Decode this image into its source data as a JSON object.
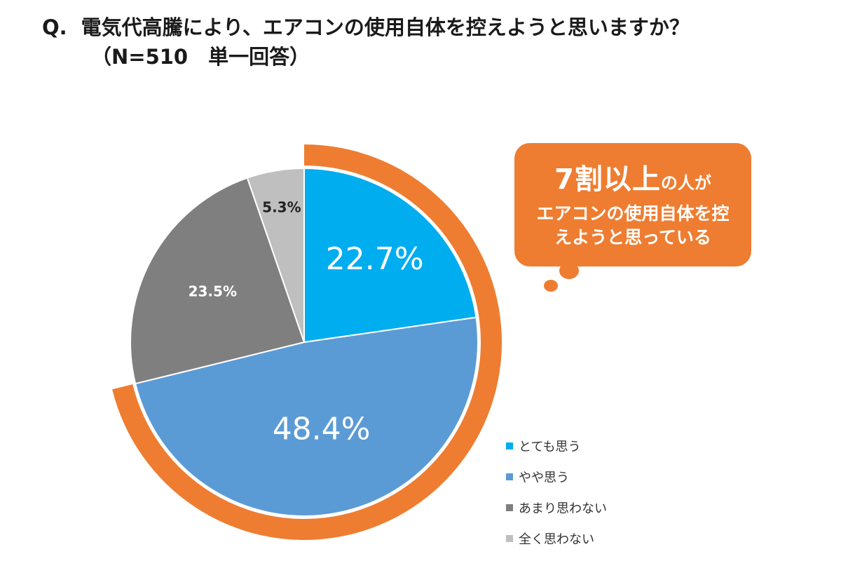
{
  "header": {
    "q_label": "Q.",
    "question": "電気代高騰により、エアコンの使用自体を控えようと思いますか？",
    "sample_note": "（N=510　単一回答）"
  },
  "callout": {
    "big_text": "7割以上",
    "small_text": "の人が",
    "line2": "エアコンの使用自体を控",
    "line3": "えようと思っている"
  },
  "colors": {
    "accent": "#ee7d31",
    "s1": "#00adef",
    "s2": "#5b9bd5",
    "s3": "#7f7f7f",
    "s4": "#bfbfbf"
  },
  "chart_data": {
    "type": "pie",
    "unit": "%",
    "categories": [
      "とても思う",
      "やや思う",
      "あまり思わない",
      "全く思わない"
    ],
    "values": [
      22.7,
      48.4,
      23.5,
      5.3
    ],
    "labels": [
      "22.7%",
      "48.4%",
      "23.5%",
      "5.3%"
    ],
    "highlight_arc": [
      "とても思う",
      "やや思う"
    ],
    "legend": [
      "とても思う",
      "やや思う",
      "あまり思わない",
      "全く思わない"
    ],
    "legend_position": "bottom-right"
  }
}
